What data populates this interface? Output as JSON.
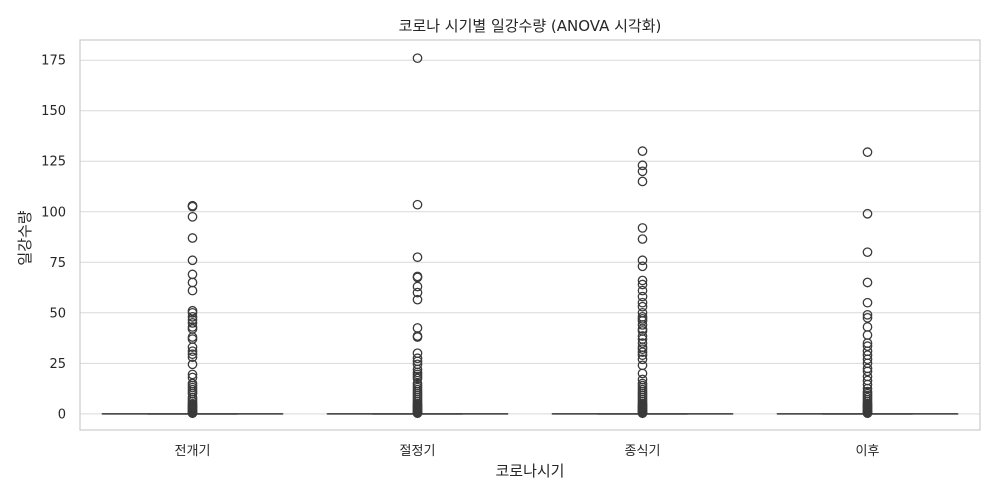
{
  "chart_data": {
    "type": "box",
    "title": "코로나 시기별 일강수량 (ANOVA 시각화)",
    "xlabel": "코로나시기",
    "ylabel": "일강수량",
    "ylim": [
      -8,
      185
    ],
    "yticks": [
      0,
      25,
      50,
      75,
      100,
      125,
      150,
      175
    ],
    "grid": "horizontal",
    "categories": [
      "전개기",
      "절정기",
      "종식기",
      "이후"
    ],
    "boxes": [
      {
        "category": "전개기",
        "q1": 0,
        "median": 0,
        "q3": 0,
        "whisker_low": 0,
        "whisker_high": 0,
        "outliers": [
          103,
          102.5,
          97.5,
          87,
          76,
          69,
          65,
          61,
          51,
          50,
          48,
          46.5,
          45,
          43,
          42,
          38,
          37,
          33,
          31,
          29.5,
          28,
          24.5,
          19.5,
          18,
          15,
          14,
          13,
          12,
          11,
          10,
          8,
          7,
          6,
          5,
          4.5,
          4,
          3.5,
          3,
          2.5,
          2,
          1.5,
          1,
          0.5,
          0.3
        ]
      },
      {
        "category": "절정기",
        "q1": 0,
        "median": 0,
        "q3": 0,
        "whisker_low": 0,
        "whisker_high": 0,
        "outliers": [
          176,
          103.5,
          77.5,
          68,
          67.5,
          63,
          60,
          56.5,
          42.5,
          38.5,
          38,
          30,
          27.5,
          26,
          24.5,
          22,
          20.5,
          19.5,
          18.5,
          17.5,
          15,
          14,
          13,
          12,
          11,
          10,
          9,
          8,
          7,
          6,
          5,
          4.5,
          4,
          3.5,
          3,
          2.5,
          2,
          1.5,
          1,
          0.5,
          0.3
        ]
      },
      {
        "category": "종식기",
        "q1": 0,
        "median": 0,
        "q3": 0,
        "whisker_low": 0,
        "whisker_high": 0,
        "outliers": [
          130,
          123,
          120,
          115,
          92,
          86.5,
          76,
          73,
          66,
          64,
          61,
          58,
          55,
          53,
          50,
          48,
          47,
          46,
          44,
          42,
          41,
          38.5,
          37,
          35,
          33,
          32,
          30.5,
          29,
          27,
          24,
          20,
          17,
          15,
          14,
          13,
          12,
          11,
          10,
          9,
          8,
          7,
          6,
          5,
          4.5,
          4,
          3.5,
          3,
          2.5,
          2,
          1.5,
          1,
          0.5,
          0.3
        ]
      },
      {
        "category": "이후",
        "q1": 0,
        "median": 0,
        "q3": 0,
        "whisker_low": 0,
        "whisker_high": 0,
        "outliers": [
          129.5,
          99,
          80,
          65,
          55,
          49,
          47.5,
          43,
          39,
          35,
          33.5,
          31,
          29,
          27,
          25,
          22.5,
          21,
          18.5,
          16.5,
          14.5,
          12.5,
          11,
          10,
          9,
          8,
          7,
          6,
          5,
          4.5,
          4,
          3.5,
          3,
          2.5,
          2,
          1.5,
          1,
          0.5,
          0.3
        ]
      }
    ]
  }
}
